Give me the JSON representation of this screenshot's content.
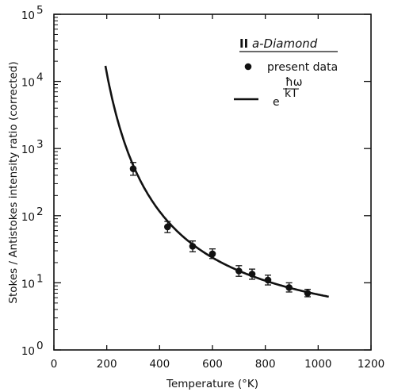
{
  "chart_data": {
    "type": "scatter",
    "xlabel": "Temperature (°K)",
    "ylabel": "Stokes / Antistokes intensity ratio (corrected)",
    "xlim": [
      0,
      1200
    ],
    "ylim": [
      1,
      100000
    ],
    "yscale": "log",
    "x_ticks": [
      "0",
      "200",
      "400",
      "600",
      "800",
      "1000",
      "1200"
    ],
    "y_tick_bases": [
      "10",
      "10",
      "10",
      "10",
      "10",
      "10"
    ],
    "y_tick_exps": [
      "0",
      "1",
      "2",
      "3",
      "4",
      "5"
    ],
    "legend": {
      "title_roman": "II",
      "title_text": " a-Diamond",
      "entries": [
        {
          "marker": "dot",
          "label": "present data"
        },
        {
          "marker": "line",
          "label_base": "e",
          "label_num": "ħω",
          "label_den": "kT"
        }
      ],
      "placement": "top-right"
    },
    "series": [
      {
        "name": "present data",
        "type": "scatter",
        "x": [
          300,
          430,
          525,
          600,
          700,
          750,
          810,
          890,
          960
        ],
        "y": [
          500,
          68,
          35,
          27,
          15,
          13.5,
          11,
          8.5,
          7
        ],
        "err_low": [
          400,
          56,
          29,
          23,
          12.5,
          11.3,
          9.3,
          7.3,
          6.2
        ],
        "err_high": [
          620,
          82,
          42,
          32,
          18,
          16,
          13,
          10,
          8
        ]
      },
      {
        "name": "e^(ħω/kT)",
        "type": "line",
        "hbar_omega_over_k": 1900,
        "x_start": 195,
        "x_end": 1040
      }
    ],
    "grid": false
  }
}
